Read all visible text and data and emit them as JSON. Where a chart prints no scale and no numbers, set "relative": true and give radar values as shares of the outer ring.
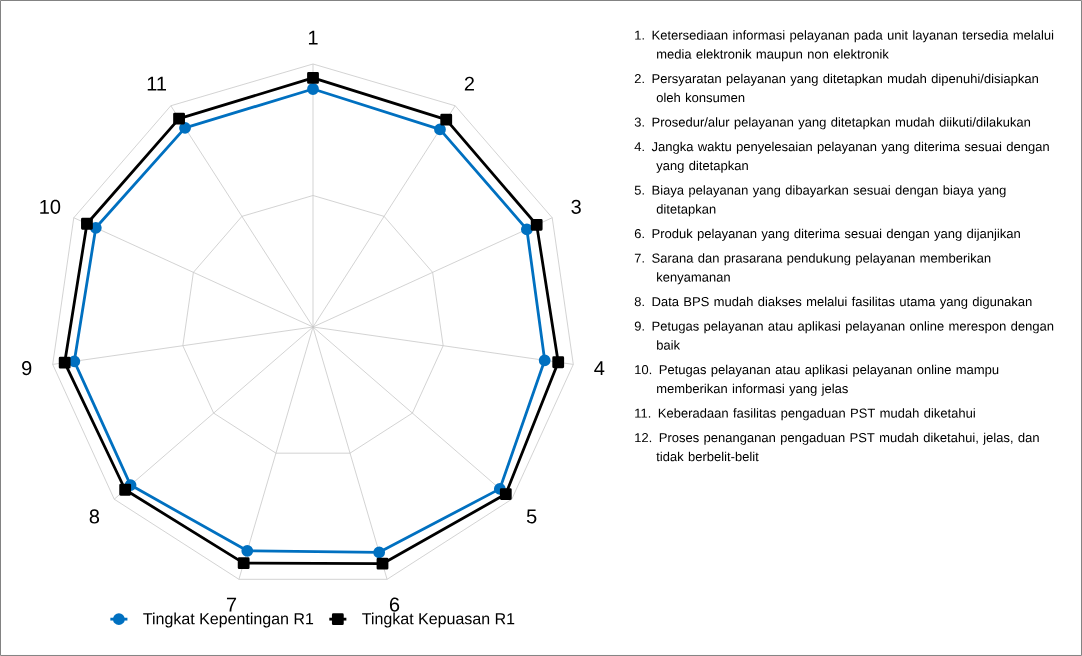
{
  "chart_data": {
    "type": "radar",
    "relative": true,
    "legend": "bottom",
    "categories": [
      "1",
      "2",
      "3",
      "4",
      "5",
      "6",
      "7",
      "8",
      "9",
      "10",
      "11"
    ],
    "series": [
      {
        "name": "Tingkat Kepentingan R1",
        "color": "#0070c0",
        "marker": "circle",
        "values": [
          0.905,
          0.893,
          0.894,
          0.89,
          0.94,
          0.893,
          0.887,
          0.918,
          0.917,
          0.908,
          0.9
        ]
      },
      {
        "name": "Tingkat Kepuasan R1",
        "color": "#000000",
        "marker": "square",
        "values": [
          0.947,
          0.937,
          0.935,
          0.942,
          0.97,
          0.938,
          0.936,
          0.945,
          0.954,
          0.945,
          0.942
        ]
      }
    ],
    "annotations": [
      "1. Ketersediaan informasi pelayanan pada unit layanan tersedia melalui media elektronik maupun non elektronik",
      "2. Persyaratan pelayanan yang ditetapkan mudah dipenuhi/disiapkan oleh konsumen",
      "3. Prosedur/alur pelayanan yang ditetapkan mudah diikuti/dilakukan",
      "4. Jangka waktu penyelesaian pelayanan yang diterima sesuai dengan yang ditetapkan",
      "5. Biaya pelayanan yang dibayarkan sesuai dengan biaya yang ditetapkan",
      "6. Produk pelayanan yang diterima sesuai dengan yang dijanjikan",
      "7. Sarana dan prasarana pendukung pelayanan memberikan kenyamanan",
      "8. Data BPS mudah diakses melalui fasilitas utama yang digunakan",
      "9. Petugas pelayanan atau aplikasi pelayanan online merespon dengan baik",
      "10. Petugas pelayanan atau aplikasi pelayanan online mampu memberikan informasi yang jelas",
      "11. Keberadaan fasilitas pengaduan PST mudah diketahui",
      "12. Proses penanganan pengaduan PST mudah diketahui, jelas, dan tidak berbelit-belit"
    ]
  }
}
